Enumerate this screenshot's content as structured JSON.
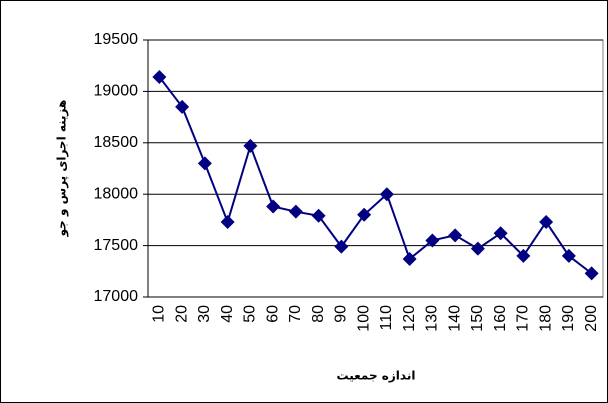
{
  "chart_data": {
    "type": "line",
    "y_label": "هزینه اجرای پرس و جو",
    "x_label": "اندازه جمعیت",
    "categories": [
      "10",
      "20",
      "30",
      "40",
      "50",
      "60",
      "70",
      "80",
      "90",
      "100",
      "110",
      "120",
      "130",
      "140",
      "150",
      "160",
      "170",
      "180",
      "190",
      "200"
    ],
    "series": [
      {
        "color": "#000080",
        "values": [
          19140,
          18850,
          18300,
          17730,
          18470,
          17880,
          17830,
          17790,
          17490,
          17800,
          18000,
          17370,
          17550,
          17600,
          17470,
          17620,
          17400,
          17730,
          17400,
          17230
        ]
      }
    ],
    "ylim": [
      17000,
      19500
    ],
    "yticks": [
      17000,
      17500,
      18000,
      18500,
      19000,
      19500
    ],
    "grid": true
  }
}
